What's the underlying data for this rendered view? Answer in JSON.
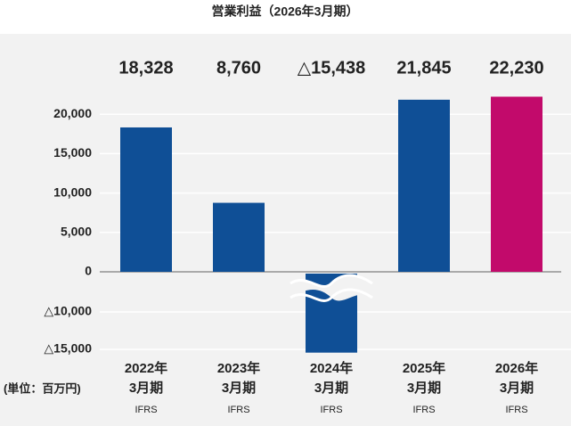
{
  "chart_data": {
    "type": "bar",
    "title": "営業利益（2026年3月期）",
    "unit": "(単位：百万円)",
    "categories": [
      [
        "2022年",
        "3月期"
      ],
      [
        "2023年",
        "3月期"
      ],
      [
        "2024年",
        "3月期"
      ],
      [
        "2025年",
        "3月期"
      ],
      [
        "2026年",
        "3月期"
      ]
    ],
    "category_notes": [
      "IFRS",
      "IFRS",
      "IFRS",
      "IFRS",
      "IFRS"
    ],
    "values": [
      18328,
      8760,
      -15438,
      21845,
      22230
    ],
    "value_labels": [
      "18,328",
      "8,760",
      "△15,438",
      "21,845",
      "22,230"
    ],
    "colors": [
      "#0f4f96",
      "#0f4f96",
      "#0f4f96",
      "#0f4f96",
      "#c20a6b"
    ],
    "ylim": [
      -16000,
      30000
    ],
    "yticks": [
      {
        "value": 20000,
        "label": "20,000"
      },
      {
        "value": 15000,
        "label": "15,000"
      },
      {
        "value": 10000,
        "label": "10,000"
      },
      {
        "value": 5000,
        "label": "5,000"
      },
      0,
      {
        "value": -10000,
        "label": "△10,000"
      },
      {
        "value": -15000,
        "label": "△15,000"
      }
    ],
    "axis_break": true,
    "grid": true
  }
}
